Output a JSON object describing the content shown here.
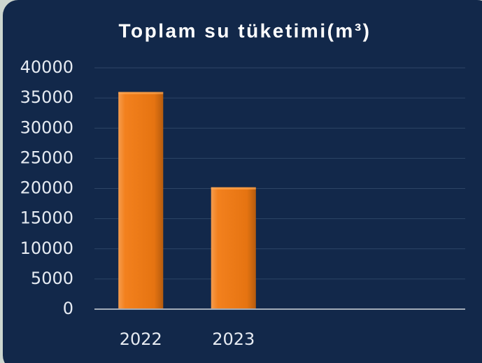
{
  "chart_data": {
    "type": "bar",
    "title": "Toplam su tüketimi(m³)",
    "categories": [
      "2022",
      "2023",
      null,
      null
    ],
    "values": [
      36000,
      20200,
      null,
      null
    ],
    "color": "#f27a12",
    "ylim": [
      0,
      40000
    ],
    "yticks": [
      0,
      5000,
      10000,
      15000,
      20000,
      25000,
      30000,
      35000,
      40000
    ],
    "grid": true
  }
}
